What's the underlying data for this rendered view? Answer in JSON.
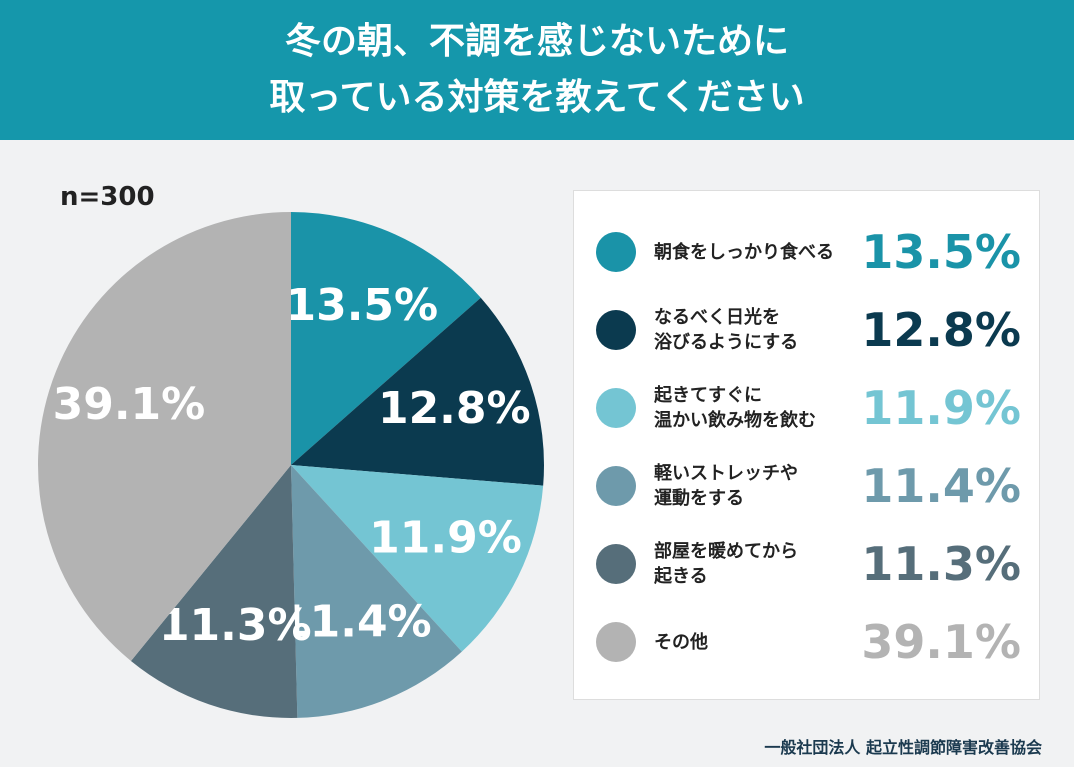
{
  "chart_data": {
    "type": "pie",
    "title": [
      "冬の朝、不調を感じないために",
      "取っている対策を教えてください"
    ],
    "subtitle": "n=300",
    "categories": [
      "朝食をしっかり食べる",
      "なるべく日光を\n浴びるようにする",
      "起きてすぐに\n温かい飲み物を飲む",
      "軽いストレッチや\n運動をする",
      "部屋を暖めてから\n起きる",
      "その他"
    ],
    "values": [
      13.5,
      12.8,
      11.9,
      11.4,
      11.3,
      39.1
    ],
    "value_labels": [
      "13.5%",
      "12.8%",
      "11.9%",
      "11.4%",
      "11.3%",
      "39.1%"
    ],
    "colors": [
      "#1a93a8",
      "#0b3a4f",
      "#74c5d3",
      "#6e9aab",
      "#566e7a",
      "#b3b3b3"
    ],
    "footer": "一般社団法人 起立性調節障害改善協会"
  }
}
